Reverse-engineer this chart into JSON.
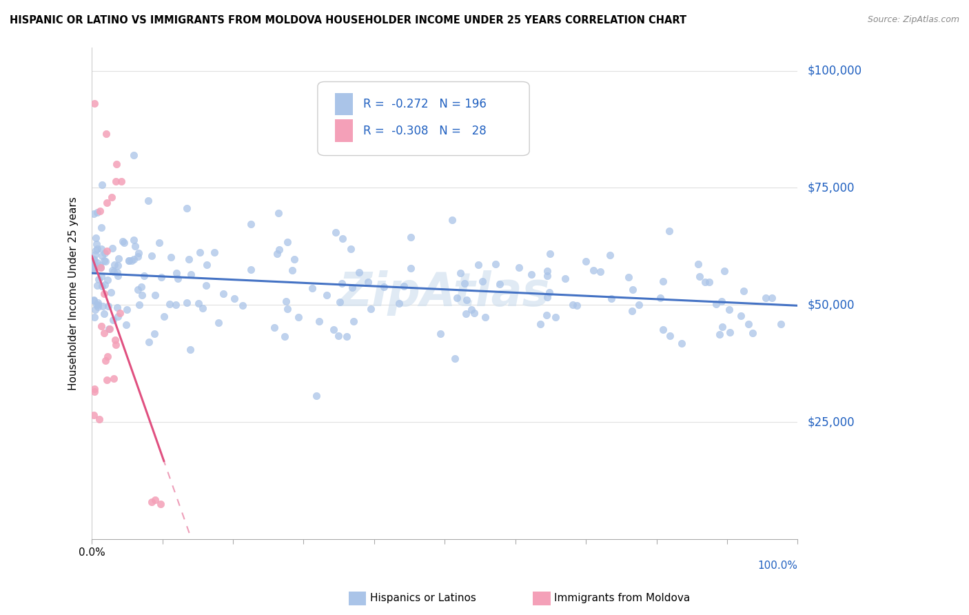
{
  "title": "HISPANIC OR LATINO VS IMMIGRANTS FROM MOLDOVA HOUSEHOLDER INCOME UNDER 25 YEARS CORRELATION CHART",
  "source": "Source: ZipAtlas.com",
  "ylabel": "Householder Income Under 25 years",
  "blue_R": -0.272,
  "blue_N": 196,
  "pink_R": -0.308,
  "pink_N": 28,
  "blue_color": "#aac4e8",
  "blue_line_color": "#4472c4",
  "pink_color": "#f4a0b8",
  "pink_line_color": "#e05080",
  "legend_label_blue": "Hispanics or Latinos",
  "legend_label_pink": "Immigrants from Moldova",
  "watermark": "ZipAtlas",
  "xmin": 0.0,
  "xmax": 100.0,
  "ymin": 0,
  "ymax": 105000,
  "marker_size": 55
}
